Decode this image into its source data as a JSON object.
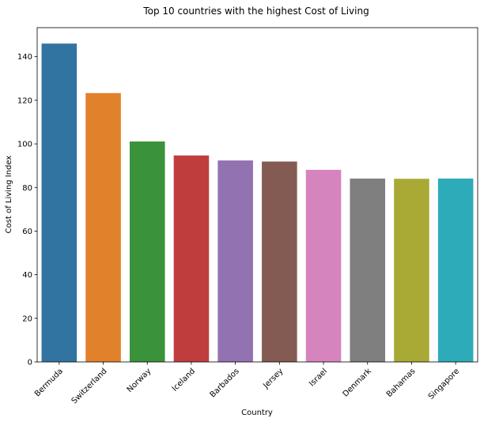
{
  "chart_data": {
    "type": "bar",
    "title": "Top 10 countries with the highest Cost of Living",
    "xlabel": "Country",
    "ylabel": "Cost of Living Index",
    "categories": [
      "Bermuda",
      "Switzerland",
      "Norway",
      "Iceland",
      "Barbados",
      "Jersey",
      "Israel",
      "Denmark",
      "Bahamas",
      "Singapore"
    ],
    "values": [
      146.0,
      123.3,
      101.1,
      94.7,
      92.4,
      91.9,
      88.1,
      84.1,
      84.0,
      84.1
    ],
    "colors": [
      "#3274a1",
      "#e1812c",
      "#3a923a",
      "#c03d3e",
      "#9372b2",
      "#845b53",
      "#d684bd",
      "#7f7f7f",
      "#a9aa35",
      "#2eabb8"
    ],
    "ylim": [
      0,
      153.3
    ],
    "yticks": [
      0,
      20,
      40,
      60,
      80,
      100,
      120,
      140
    ],
    "grid": false,
    "legend": "none"
  }
}
